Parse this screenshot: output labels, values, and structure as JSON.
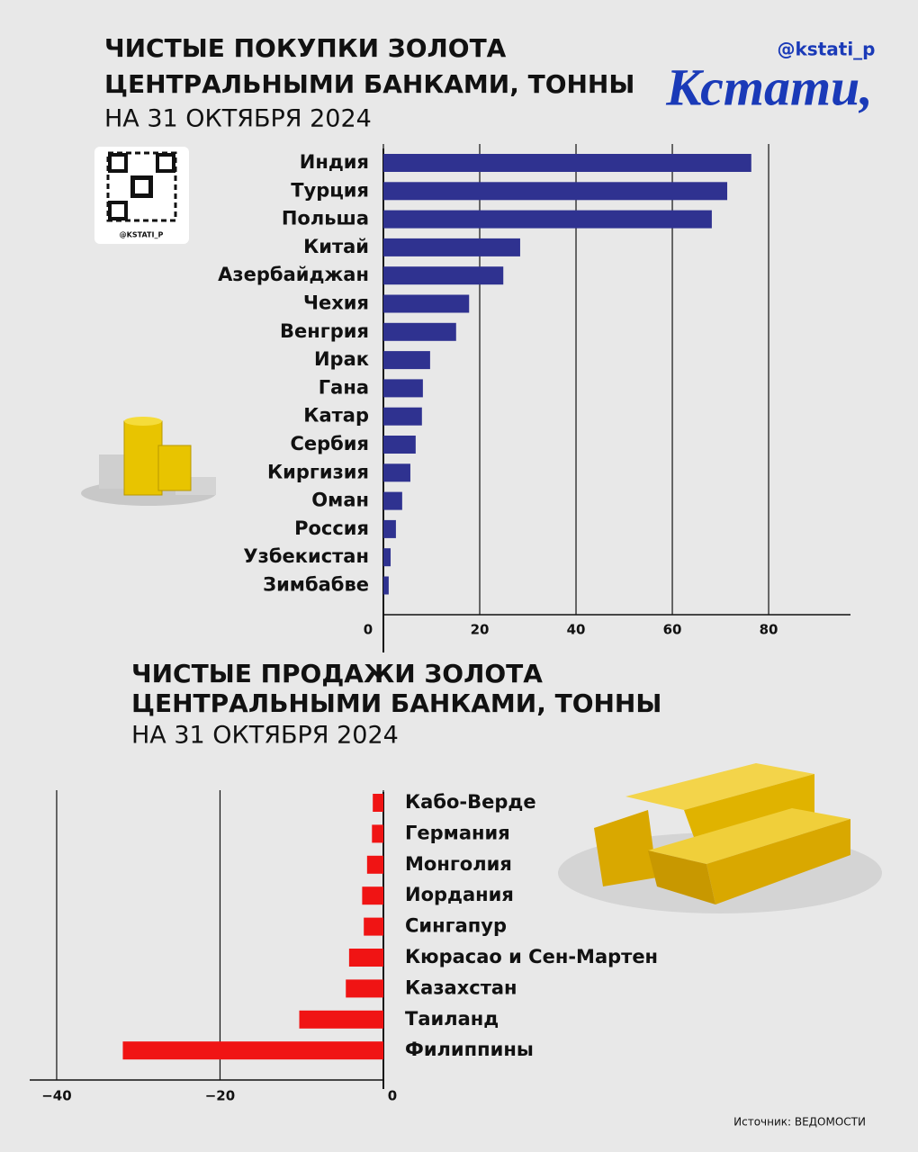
{
  "handle": "@kstati_p",
  "logo": "Кстати,",
  "qr_label": "@KSTATI_P",
  "source": "Источник: ВЕДОМОСТИ",
  "chart_data": [
    {
      "type": "bar",
      "orientation": "horizontal",
      "title": [
        "ЧИСТЫЕ ПОКУПКИ ЗОЛОТА",
        "ЦЕНТРАЛЬНЫМИ БАНКАМИ, ТОННЫ"
      ],
      "subtitle": "НА 31 ОКТЯБРЯ 2024",
      "categories": [
        "Индия",
        "Турция",
        "Польша",
        "Китай",
        "Азербайджан",
        "Чехия",
        "Венгрия",
        "Ирак",
        "Гана",
        "Катар",
        "Сербия",
        "Киргизия",
        "Оман",
        "Россия",
        "Узбекистан",
        "Зимбабве"
      ],
      "values": [
        76.4,
        71.4,
        68.2,
        28.4,
        24.9,
        17.8,
        15.1,
        9.7,
        8.2,
        8.0,
        6.7,
        5.6,
        3.9,
        2.6,
        1.5,
        1.1
      ],
      "color": "#2f3290",
      "xlim": [
        0,
        97
      ],
      "xticks": [
        0,
        20,
        40,
        60,
        80
      ],
      "grid": true
    },
    {
      "type": "bar",
      "orientation": "horizontal",
      "title": [
        "ЧИСТЫЕ ПРОДАЖИ ЗОЛОТА",
        "ЦЕНТРАЛЬНЫМИ БАНКАМИ, ТОННЫ"
      ],
      "subtitle": "НА 31 ОКТЯБРЯ 2024",
      "categories": [
        "Кабо-Верде",
        "Германия",
        "Монголия",
        "Иордания",
        "Сингапур",
        "Кюрасао и Сен-Мартен",
        "Казахстан",
        "Таиланд",
        "Филиппины"
      ],
      "values": [
        -1.3,
        -1.4,
        -2.0,
        -2.6,
        -2.4,
        -4.2,
        -4.6,
        -10.3,
        -31.9
      ],
      "color": "#f01414",
      "xlim": [
        -43.3,
        0
      ],
      "xticks": [
        {
          "value": -40,
          "label": "−40"
        },
        {
          "value": -20,
          "label": "−20"
        },
        0
      ],
      "grid": true
    }
  ]
}
